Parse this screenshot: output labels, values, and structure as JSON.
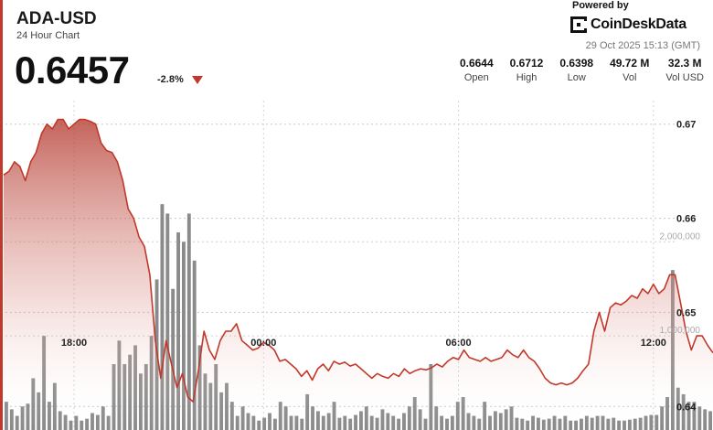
{
  "header": {
    "symbol": "ADA-USD",
    "subtitle": "24 Hour Chart",
    "price": "0.6457",
    "change": "-2.8%"
  },
  "brand": {
    "powered_by": "Powered by",
    "name": "CoinDeskData",
    "timestamp": "29 Oct 2025 15:13 (GMT)"
  },
  "stats": [
    {
      "value": "0.6644",
      "label": "Open"
    },
    {
      "value": "0.6712",
      "label": "High"
    },
    {
      "value": "0.6398",
      "label": "Low"
    },
    {
      "value": "49.72 M",
      "label": "Vol"
    },
    {
      "value": "32.3 M",
      "label": "Vol USD"
    }
  ],
  "colors": {
    "accent": "#c0392b",
    "line": "#c0392b",
    "area_top": "#c0392b",
    "bars": "#777777"
  },
  "chart_data": [
    {
      "type": "area",
      "series": [
        {
          "values": [
            0.6646,
            0.665,
            0.666,
            0.6655,
            0.664,
            0.666,
            0.667,
            0.669,
            0.67,
            0.6695,
            0.6705,
            0.6705,
            0.6695,
            0.67,
            0.6705,
            0.6705,
            0.6703,
            0.67,
            0.668,
            0.6672,
            0.667,
            0.666,
            0.664,
            0.661,
            0.66,
            0.658,
            0.657,
            0.654,
            0.647,
            0.643,
            0.647,
            0.6445,
            0.642,
            0.6435,
            0.641,
            0.6405,
            0.644,
            0.648,
            0.646,
            0.645,
            0.647,
            0.648,
            0.648,
            0.6488,
            0.647,
            0.6465,
            0.646,
            0.6462,
            0.6468,
            0.6465,
            0.646,
            0.6448,
            0.645,
            0.6445,
            0.644,
            0.6432,
            0.6438,
            0.6428,
            0.644,
            0.6445,
            0.6438,
            0.6448,
            0.6445,
            0.6447,
            0.6443,
            0.6445,
            0.644,
            0.6435,
            0.643,
            0.6435,
            0.6432,
            0.643,
            0.6435,
            0.6432,
            0.644,
            0.6435,
            0.6438,
            0.644,
            0.6439,
            0.6441,
            0.6445,
            0.6442,
            0.6448,
            0.6452,
            0.645,
            0.646,
            0.6452,
            0.645,
            0.6448,
            0.6452,
            0.6448,
            0.645,
            0.6452,
            0.646,
            0.6455,
            0.6452,
            0.646,
            0.6452,
            0.6448,
            0.644,
            0.643,
            0.6425,
            0.6423,
            0.6425,
            0.6423,
            0.6425,
            0.643,
            0.6438,
            0.6445,
            0.648,
            0.65,
            0.648,
            0.6505,
            0.651,
            0.6508,
            0.6512,
            0.6518,
            0.6515,
            0.6525,
            0.652,
            0.653,
            0.652,
            0.6525,
            0.654,
            0.654,
            0.651,
            0.648,
            0.646,
            0.6475,
            0.6475,
            0.6465,
            0.6457
          ]
        }
      ],
      "x_ticks": [
        {
          "label": "18:00",
          "index": 13
        },
        {
          "label": "00:00",
          "index": 48
        },
        {
          "label": "06:00",
          "index": 84
        },
        {
          "label": "12:00",
          "index": 120
        }
      ],
      "y_ticks": [
        0.64,
        0.65,
        0.66,
        0.67
      ],
      "ylim": [
        0.6375,
        0.6725
      ],
      "grid": true
    },
    {
      "type": "bar",
      "series": [
        {
          "values": [
            300000,
            220000,
            150000,
            250000,
            280000,
            550000,
            400000,
            1000000,
            300000,
            500000,
            200000,
            160000,
            100000,
            150000,
            100000,
            120000,
            180000,
            160000,
            250000,
            150000,
            700000,
            950000,
            700000,
            800000,
            900000,
            600000,
            700000,
            1000000,
            1600000,
            2400000,
            2300000,
            1500000,
            2100000,
            2000000,
            2300000,
            1800000,
            900000,
            600000,
            500000,
            700000,
            400000,
            500000,
            300000,
            150000,
            250000,
            180000,
            150000,
            100000,
            130000,
            180000,
            120000,
            300000,
            250000,
            150000,
            150000,
            120000,
            380000,
            250000,
            200000,
            150000,
            180000,
            300000,
            130000,
            150000,
            120000,
            160000,
            200000,
            250000,
            150000,
            130000,
            220000,
            180000,
            150000,
            120000,
            180000,
            250000,
            350000,
            220000,
            120000,
            700000,
            250000,
            150000,
            120000,
            150000,
            300000,
            350000,
            180000,
            150000,
            120000,
            300000,
            150000,
            200000,
            180000,
            220000,
            250000,
            130000,
            120000,
            100000,
            150000,
            130000,
            110000,
            120000,
            150000,
            120000,
            150000,
            100000,
            100000,
            120000,
            150000,
            130000,
            150000,
            150000,
            120000,
            130000,
            100000,
            100000,
            110000,
            120000,
            130000,
            150000,
            160000,
            160000,
            250000,
            350000,
            1700000,
            450000,
            380000,
            300000,
            300000,
            250000,
            220000,
            200000
          ],
          "color": "#777777"
        }
      ],
      "y_ticks": [
        1000000,
        2000000
      ],
      "y_tick_labels": [
        "1,000,000",
        "2,000,000"
      ],
      "ylim": [
        0,
        3500000
      ]
    }
  ]
}
